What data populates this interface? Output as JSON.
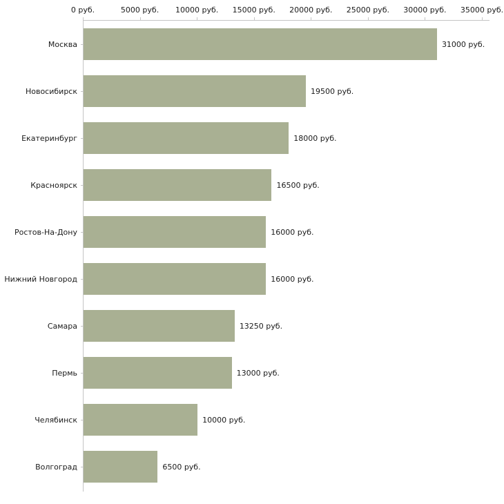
{
  "chart_data": {
    "type": "bar",
    "orientation": "horizontal",
    "title": "",
    "xlabel": "",
    "ylabel": "",
    "unit": "руб.",
    "categories": [
      "Москва",
      "Новосибирск",
      "Екатеринбург",
      "Красноярск",
      "Ростов-На-Дону",
      "Нижний Новгород",
      "Самара",
      "Пермь",
      "Челябинск",
      "Волгоград"
    ],
    "values": [
      31000,
      19500,
      18000,
      16500,
      16000,
      16000,
      13250,
      13000,
      10000,
      6500
    ],
    "value_labels": [
      "31000 руб.",
      "19500 руб.",
      "18000 руб.",
      "16500 руб.",
      "16000 руб.",
      "16000 руб.",
      "13250 руб.",
      "13000 руб.",
      "10000 руб.",
      "6500 руб."
    ],
    "x_ticks": [
      0,
      5000,
      10000,
      15000,
      20000,
      25000,
      30000,
      35000
    ],
    "x_tick_labels": [
      "0 руб.",
      "5000 руб.",
      "10000 руб.",
      "15000 руб.",
      "20000 руб.",
      "25000 руб.",
      "30000 руб.",
      "35000 руб."
    ],
    "xlim": [
      0,
      35000
    ],
    "grid": false,
    "legend": false,
    "bar_color": "#a9b093",
    "axis_color": "#c4c4c4",
    "text_color": "#1a1a1a",
    "background_color": "#ffffff"
  }
}
